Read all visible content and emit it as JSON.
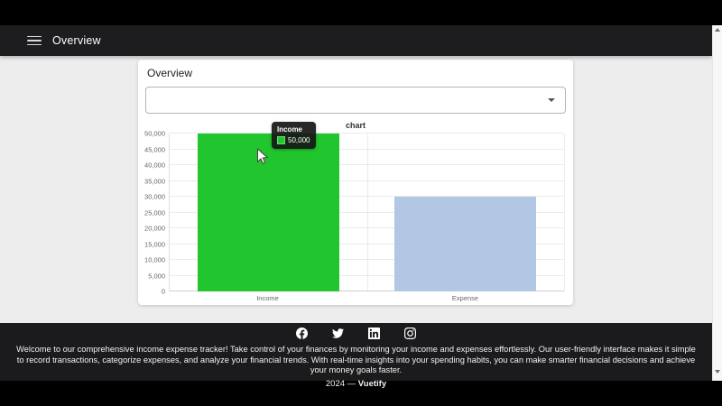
{
  "app_bar": {
    "title": "Overview"
  },
  "card": {
    "title": "Overview",
    "select": {
      "value": "",
      "placeholder": ""
    }
  },
  "chart_data": {
    "type": "bar",
    "title": "chart",
    "categories": [
      "Income",
      "Expense"
    ],
    "values": [
      50000,
      30000
    ],
    "colors": [
      "#21c52d",
      "#b2c7e3"
    ],
    "ylim": [
      0,
      50000
    ],
    "ytick_step": 5000,
    "yticks": [
      "0",
      "5,000",
      "10,000",
      "15,000",
      "20,000",
      "25,000",
      "30,000",
      "35,000",
      "40,000",
      "45,000",
      "50,000"
    ],
    "grid": true,
    "legend": "none"
  },
  "tooltip": {
    "title": "Income",
    "value": "50,000",
    "swatch_color": "#21c52d"
  },
  "footer": {
    "icons": [
      "facebook-icon",
      "twitter-icon",
      "linkedin-icon",
      "instagram-icon"
    ],
    "about": "Welcome to our comprehensive income expense tracker! Take control of your finances by monitoring your income and expenses effortlessly. Our user-friendly interface makes it simple to record transactions, categorize expenses, and analyze your financial trends. With real-time insights into your spending habits, you can make smarter financial decisions and achieve your money goals faster.",
    "year": "2024 —",
    "brand": "Vuetify"
  },
  "colors": {
    "app_bar_bg": "#1d1d1f",
    "footer_bg": "#1b1b1d",
    "page_bg": "#ededee",
    "income_bar": "#21c52d",
    "expense_bar": "#b2c7e3"
  }
}
